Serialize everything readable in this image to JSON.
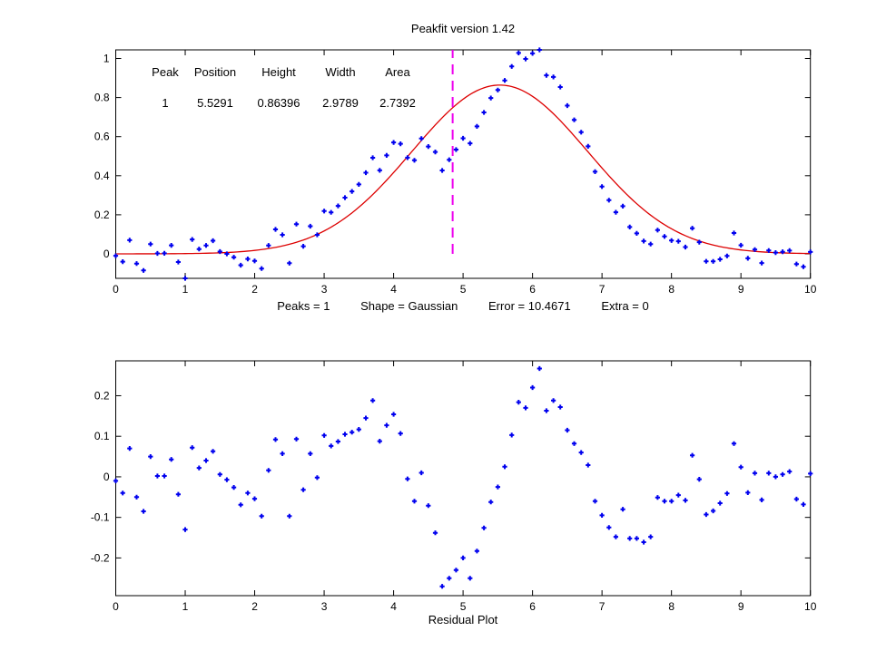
{
  "figure": {
    "background": "#ffffff",
    "axis_color": "#000000"
  },
  "chart_data": [
    {
      "name": "fit-plot",
      "type": "scatter",
      "title": "Peakfit version 1.42",
      "x_start": 0,
      "x_step": 0.1,
      "n_points": 101,
      "xlim": [
        0,
        10
      ],
      "ylim": [
        -0.1253,
        1.0441
      ],
      "xticks": [
        0,
        1,
        2,
        3,
        4,
        5,
        6,
        7,
        8,
        9,
        10
      ],
      "xtick_labels": [
        "0",
        "1",
        "2",
        "3",
        "4",
        "5",
        "6",
        "7",
        "8",
        "9",
        "10"
      ],
      "yticks": [
        0,
        0.2,
        0.4,
        0.6,
        0.8,
        1
      ],
      "ytick_labels": [
        "0",
        "0.2",
        "0.4",
        "0.6",
        "0.8",
        "1"
      ],
      "grid": false,
      "marker_color": "#0000ee",
      "curve_color": "#dd0000",
      "cursor": {
        "x": 4.85,
        "from_y": 0,
        "style": "dashed",
        "color": "#ee00ee"
      },
      "table": {
        "headers": [
          "Peak",
          "Position",
          "Height",
          "Width",
          "Area"
        ],
        "row": [
          "1",
          "5.5291",
          "0.86396",
          "2.9789",
          "2.7392"
        ]
      },
      "footer": [
        "Peaks = 1",
        "Shape = Gaussian",
        "Error = 10.4671",
        "Extra = 0"
      ],
      "fit": {
        "shape": "Gaussian",
        "peak": 1,
        "position": 5.5291,
        "height": 0.86396,
        "width": 2.9789,
        "area": 2.7392,
        "error": 10.4671,
        "extra": 0
      },
      "signal_rule": "y[i] = height*exp(-((x[i]-position)/(0.6005615*width))^2) + residuals[i]",
      "residuals": [
        -0.01,
        -0.04,
        0.07,
        -0.05,
        -0.085,
        0.05,
        0.002,
        0.002,
        0.043,
        -0.043,
        -0.13,
        0.072,
        0.022,
        0.04,
        0.063,
        0.006,
        -0.007,
        -0.026,
        -0.069,
        -0.04,
        -0.054,
        -0.097,
        0.016,
        0.092,
        0.057,
        -0.097,
        0.093,
        -0.032,
        0.057,
        -0.002,
        0.102,
        0.076,
        0.087,
        0.105,
        0.11,
        0.117,
        0.145,
        0.188,
        0.088,
        0.127,
        0.154,
        0.107,
        -0.005,
        -0.06,
        0.01,
        -0.071,
        -0.138,
        -0.27,
        -0.25,
        -0.23,
        -0.2,
        -0.25,
        -0.183,
        -0.126,
        -0.062,
        -0.025,
        0.025,
        0.103,
        0.184,
        0.17,
        0.22,
        0.267,
        0.163,
        0.188,
        0.172,
        0.115,
        0.082,
        0.06,
        0.029,
        -0.06,
        -0.095,
        -0.125,
        -0.148,
        -0.08,
        -0.152,
        -0.152,
        -0.161,
        -0.148,
        -0.051,
        -0.06,
        -0.06,
        -0.045,
        -0.058,
        0.053,
        -0.006,
        -0.093,
        -0.084,
        -0.065,
        -0.041,
        0.082,
        0.024,
        -0.039,
        0.009,
        -0.057,
        0.009,
        0.0,
        0.006,
        0.013,
        -0.055,
        -0.068,
        0.008
      ]
    },
    {
      "name": "residual-plot",
      "type": "scatter",
      "xlabel": "Residual Plot",
      "x_start": 0,
      "x_step": 0.1,
      "n_points": 101,
      "xlim": [
        0,
        10
      ],
      "ylim": [
        -0.293,
        0.286
      ],
      "xticks": [
        0,
        1,
        2,
        3,
        4,
        5,
        6,
        7,
        8,
        9,
        10
      ],
      "xtick_labels": [
        "0",
        "1",
        "2",
        "3",
        "4",
        "5",
        "6",
        "7",
        "8",
        "9",
        "10"
      ],
      "yticks": [
        -0.2,
        -0.1,
        0,
        0.1,
        0.2
      ],
      "ytick_labels": [
        "-0.2",
        "-0.1",
        "0",
        "0.1",
        "0.2"
      ],
      "grid": false,
      "marker_color": "#0000ee",
      "values_source": "chart_data[0].residuals"
    }
  ]
}
